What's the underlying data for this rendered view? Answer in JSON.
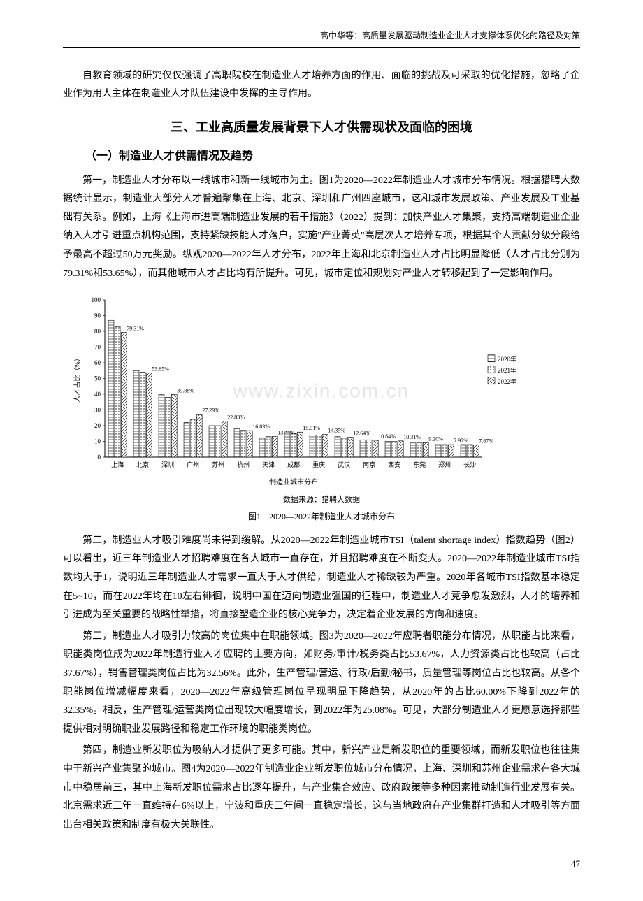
{
  "header": {
    "running_head": "高中华等：高质量发展驱动制造业企业人才支撑体系优化的路径及对策"
  },
  "para_intro": "自教育领域的研究仅仅强调了高职院校在制造业人才培养方面的作用、面临的挑战及可采取的优化措施，忽略了企业作为用人主体在制造业人才队伍建设中发挥的主导作用。",
  "section_title": "三、工业高质量发展背景下人才供需现状及面临的困境",
  "subsection_title": "（一）制造业人才供需情况及趋势",
  "para1": "第一，制造业人才分布以一线城市和新一线城市为主。图1为2020—2022年制造业人才城市分布情况。根据猎聘大数据统计显示，制造业大部分人才普遍聚集在上海、北京、深圳和广州四座城市，这和城市发展政策、产业发展及工业基础有关系。例如，上海《上海市进高端制造业发展的若干措施》（2022）提到：加快产业人才集聚，支持高端制造业企业纳入人才引进重点机构范围，支持紧缺技能人才落户，实施\"产业菁英\"高层次人才培养专项，根据其个人贡献分级分段给予最高不超过50万元奖励。纵观2020—2022年人才分布，2022年上海和北京制造业人才占比明显降低（人才占比分别为79.31%和53.65%），而其他城市人才占比均有所提升。可见，城市定位和规划对产业人才转移起到了一定影响作用。",
  "chart": {
    "type": "bar",
    "title": "",
    "xlabel": "制造业城市分布",
    "ylabel": "人才占比（%）",
    "ylim": [
      0,
      100
    ],
    "ytick_step": 10,
    "categories": [
      "上海",
      "北京",
      "深圳",
      "广州",
      "苏州",
      "杭州",
      "天津",
      "成都",
      "重庆",
      "武汉",
      "南京",
      "西安",
      "东莞",
      "郑州",
      "长沙"
    ],
    "series": [
      {
        "name": "2020年",
        "pattern": "horizontal",
        "values": [
          87,
          55,
          40,
          22,
          20,
          18,
          12,
          16,
          14,
          13,
          11,
          10,
          9,
          8,
          8
        ]
      },
      {
        "name": "2021年",
        "pattern": "dots",
        "values": [
          83,
          54,
          38,
          24,
          20,
          17,
          13,
          15,
          14,
          12,
          11,
          10,
          9,
          8,
          8
        ]
      },
      {
        "name": "2022年",
        "pattern": "diagonal",
        "values": [
          79.31,
          53.65,
          39.88,
          27.29,
          22.83,
          16.83,
          13.11,
          15.91,
          14.35,
          12.64,
          10.64,
          10.31,
          9.2,
          7.97,
          7.87
        ]
      }
    ],
    "value_labels": [
      "79.31%",
      "53.65%",
      "39.88%",
      "27.29%",
      "22.83%",
      "16.83%",
      "13.11%",
      "15.91%",
      "14.35%",
      "12.64%",
      "10.64%",
      "10.31%",
      "9.20%",
      "7.97%",
      "7.87%"
    ],
    "legend_items": [
      "2020年",
      "2021年",
      "2022年"
    ],
    "bar_fill": "#ffffff",
    "bar_stroke": "#000000",
    "grid_color": "#cccccc",
    "label_fontsize": 9,
    "source": "数据来源：猎聘大数据",
    "caption": "图1　2020—2022年制造业人才城市分布",
    "watermark": "www.zixin.com.cn"
  },
  "para2": "第二，制造业人才吸引难度尚未得到缓解。从2020—2022年制造业城市TSI（talent shortage index）指数趋势（图2）可以看出，近三年制造业人才招聘难度在各大城市一直存在，并且招聘难度在不断变大。2020—2022年制造业城市TSI指数均大于1，说明近三年制造业人才需求一直大于人才供给，制造业人才稀缺较为严重。2020年各城市TSI指数基本稳定在5~10，而在2022年均在10左右徘徊，说明中国在迈向制造业强国的征程中，制造业人才竞争愈发激烈，人才的培养和引进成为至关重要的战略性举措，将直接塑造企业的核心竞争力，决定着企业发展的方向和速度。",
  "para3": "第三，制造业人才吸引力较高的岗位集中在职能领域。图3为2020—2022年应聘者职能分布情况，从职能占比来看，职能类岗位成为2022年制造行业人才应聘的主要方向，如财务/审计/税务类占比53.67%，人力资源类占比也较高（占比37.67%），销售管理类岗位占比为32.56%。此外，生产管理/营运、行政/后勤/秘书，质量管理等岗位占比也较高。从各个职能岗位增减幅度来看，2020—2022年高级管理岗位呈现明显下降趋势，从2020年的占比60.00%下降到2022年的32.35%。相反，生产管理/运营类岗位出现较大幅度增长，到2022年为25.08%。可见，大部分制造业人才更愿意选择那些提供相对明确职业发展路径和稳定工作环境的职能类岗位。",
  "para4": "第四，制造业新发职位为吸纳人才提供了更多可能。其中，新兴产业是新发职位的重要领域，而新发职位也往往集中于新兴产业集聚的城市。图4为2020—2022年制造业企业新发职位城市分布情况，上海、深圳和苏州企业需求在各大城市中稳居前三，其中上海新发职位需求占比逐年提升，与产业集合效应、政府政策等多种因素推动制造行业发展有关。北京需求近三年一直维持在6%以上，宁波和重庆三年间一直稳定增长，这与当地政府在产业集群打造和人才吸引等方面出台相关政策和制度有极大关联性。",
  "page_number": "47"
}
